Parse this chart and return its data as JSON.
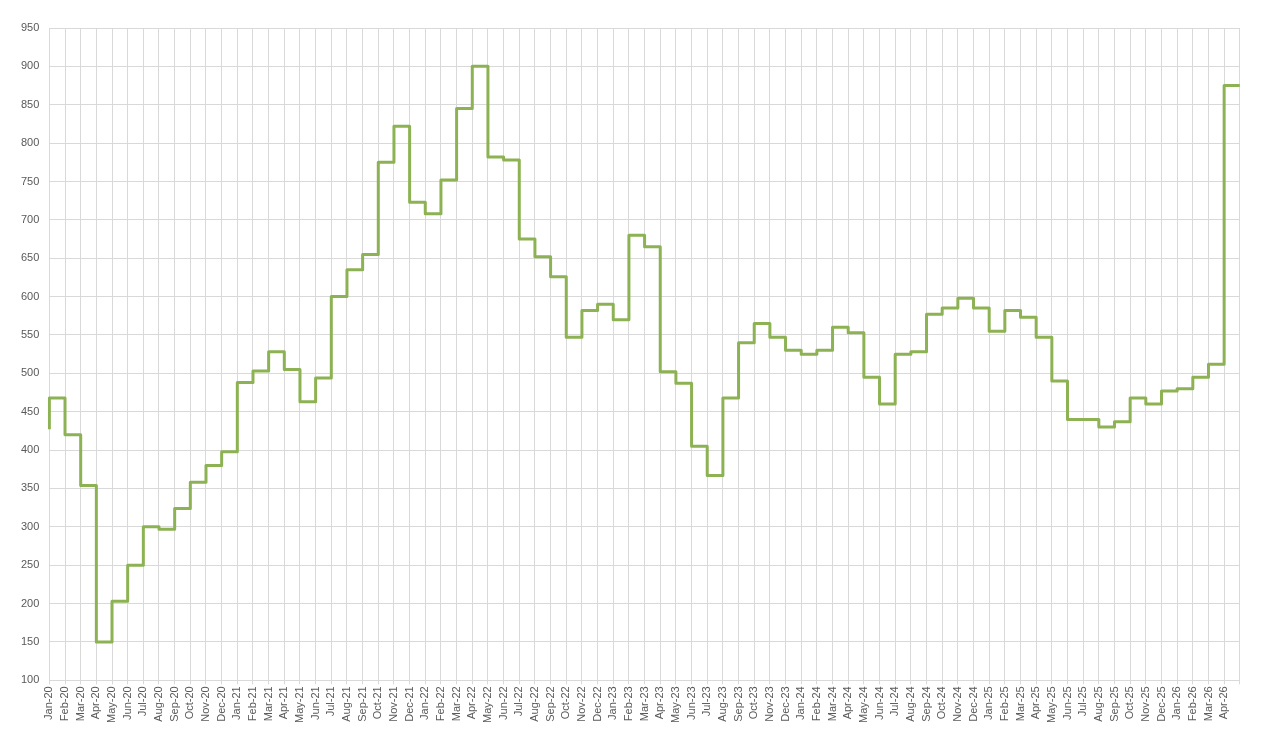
{
  "chart_data": {
    "type": "step",
    "categories": [
      "Jan-20",
      "Feb-20",
      "Mar-20",
      "Apr-20",
      "May-20",
      "Jun-20",
      "Jul-20",
      "Aug-20",
      "Sep-20",
      "Oct-20",
      "Nov-20",
      "Dec-20",
      "Jan-21",
      "Feb-21",
      "Mar-21",
      "Apr-21",
      "May-21",
      "Jun-21",
      "Jul-21",
      "Aug-21",
      "Sep-21",
      "Oct-21",
      "Nov-21",
      "Dec-21",
      "Jan-22",
      "Feb-22",
      "Mar-22",
      "Apr-22",
      "May-22",
      "Jun-22",
      "Jul-22",
      "Aug-22",
      "Sep-22",
      "Oct-22",
      "Nov-22",
      "Dec-22",
      "Jan-23",
      "Feb-23",
      "Mar-23",
      "Apr-23",
      "May-23",
      "Jun-23",
      "Jul-23",
      "Aug-23",
      "Sep-23",
      "Oct-23",
      "Nov-23",
      "Dec-23",
      "Jan-24",
      "Feb-24",
      "Mar-24",
      "Apr-24",
      "May-24",
      "Jun-24",
      "Jul-24",
      "Aug-24",
      "Sep-24",
      "Oct-24",
      "Nov-24",
      "Dec-24",
      "Jan-25",
      "Feb-25",
      "Mar-25",
      "Apr-25",
      "May-25",
      "Jun-25",
      "Jul-25",
      "Aug-25",
      "Sep-25",
      "Oct-25",
      "Nov-25",
      "Dec-25",
      "Jan-26",
      "Feb-26",
      "Mar-26",
      "Apr-26",
      null
    ],
    "values": [
      427,
      468,
      420,
      354,
      150,
      203,
      250,
      300,
      297,
      324,
      358,
      380,
      398,
      488,
      503,
      528,
      505,
      463,
      494,
      600,
      635,
      655,
      775,
      822,
      723,
      708,
      752,
      845,
      900,
      782,
      778,
      675,
      652,
      626,
      547,
      582,
      590,
      570,
      680,
      665,
      502,
      487,
      405,
      367,
      468,
      540,
      565,
      547,
      530,
      525,
      530,
      560,
      553,
      495,
      460,
      525,
      528,
      577,
      585,
      598,
      585,
      555,
      582,
      573,
      547,
      490,
      440,
      440,
      430,
      437,
      468,
      460,
      477,
      480,
      495,
      512,
      875
    ],
    "color": "#8db253",
    "ylim": [
      100,
      950
    ],
    "yticks": [
      100,
      150,
      200,
      250,
      300,
      350,
      400,
      450,
      500,
      550,
      600,
      650,
      700,
      750,
      800,
      850,
      900,
      950
    ],
    "grid": true,
    "marker": "none"
  }
}
